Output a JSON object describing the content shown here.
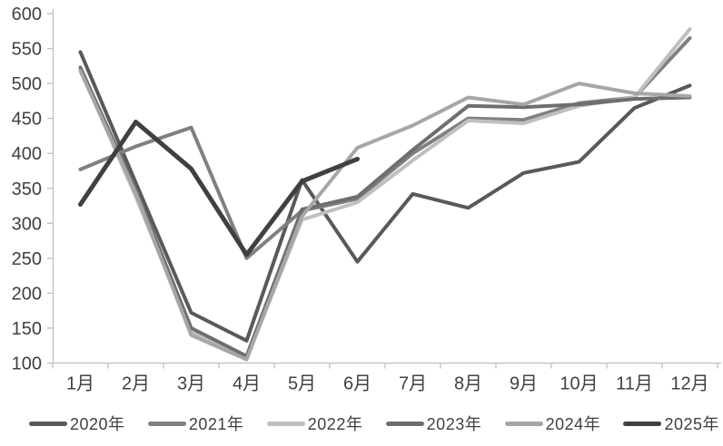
{
  "chart_data": {
    "type": "line",
    "title": "",
    "xlabel": "",
    "ylabel": "",
    "categories": [
      "1月",
      "2月",
      "3月",
      "4月",
      "5月",
      "6月",
      "7月",
      "8月",
      "9月",
      "10月",
      "11月",
      "12月"
    ],
    "yticks": [
      100,
      150,
      200,
      250,
      300,
      350,
      400,
      450,
      500,
      550,
      600
    ],
    "ylim": [
      100,
      600
    ],
    "grid": false,
    "legend_position": "bottom",
    "axis_color": "#bfbfbf",
    "text_color": "#404040",
    "series": [
      {
        "name": "2020年",
        "color": "#595959",
        "stroke_width": 4,
        "values": [
          545,
          358,
          172,
          132,
          362,
          245,
          342,
          322,
          372,
          388,
          465,
          497
        ]
      },
      {
        "name": "2021年",
        "color": "#808080",
        "stroke_width": 4,
        "values": [
          377,
          410,
          437,
          250,
          318,
          335,
          400,
          450,
          448,
          472,
          480,
          565
        ]
      },
      {
        "name": "2022年",
        "color": "#bfbfbf",
        "stroke_width": 4,
        "values": [
          520,
          338,
          145,
          107,
          305,
          330,
          390,
          447,
          443,
          468,
          480,
          578
        ]
      },
      {
        "name": "2023年",
        "color": "#6e6e6e",
        "stroke_width": 4,
        "values": [
          523,
          348,
          150,
          110,
          320,
          338,
          405,
          468,
          466,
          470,
          478,
          480
        ]
      },
      {
        "name": "2024年",
        "color": "#a6a6a6",
        "stroke_width": 4,
        "values": [
          518,
          343,
          140,
          105,
          310,
          408,
          440,
          480,
          470,
          500,
          486,
          482
        ]
      },
      {
        "name": "2025年",
        "color": "#404040",
        "stroke_width": 5,
        "values": [
          327,
          445,
          378,
          255,
          360,
          392,
          null,
          null,
          null,
          null,
          null,
          null
        ]
      }
    ]
  },
  "legend": {
    "items": [
      {
        "label": "2020年",
        "color": "#595959"
      },
      {
        "label": "2021年",
        "color": "#808080"
      },
      {
        "label": "2022年",
        "color": "#bfbfbf"
      },
      {
        "label": "2023年",
        "color": "#6e6e6e"
      },
      {
        "label": "2024年",
        "color": "#a6a6a6"
      },
      {
        "label": "2025年",
        "color": "#404040"
      }
    ]
  }
}
